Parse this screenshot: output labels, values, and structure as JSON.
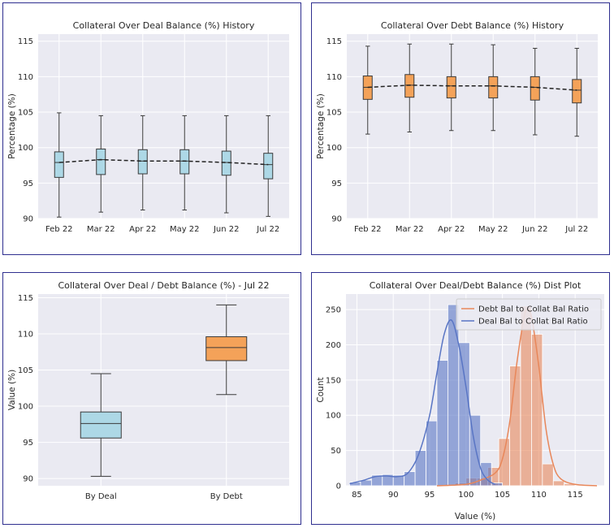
{
  "chart_data": [
    {
      "type": "box",
      "title": "Collateral Over Deal Balance (%) History",
      "xlabel": "",
      "ylabel": "Percentage (%)",
      "ylim": [
        90,
        116
      ],
      "yticks": [
        90,
        95,
        100,
        105,
        110,
        115
      ],
      "categories": [
        "Feb 22",
        "Mar 22",
        "Apr 22",
        "May 22",
        "Jun 22",
        "Jul 22"
      ],
      "box_color": "#add8e6",
      "boxes": [
        {
          "min": 90.2,
          "q1": 95.8,
          "median": 97.9,
          "q3": 99.4,
          "max": 104.9
        },
        {
          "min": 90.9,
          "q1": 96.2,
          "median": 98.3,
          "q3": 99.8,
          "max": 104.5
        },
        {
          "min": 91.2,
          "q1": 96.3,
          "median": 98.1,
          "q3": 99.7,
          "max": 104.5
        },
        {
          "min": 91.2,
          "q1": 96.3,
          "median": 98.1,
          "q3": 99.7,
          "max": 104.5
        },
        {
          "min": 90.8,
          "q1": 96.1,
          "median": 97.9,
          "q3": 99.5,
          "max": 104.5
        },
        {
          "min": 90.3,
          "q1": 95.6,
          "median": 97.6,
          "q3": 99.2,
          "max": 104.5
        }
      ],
      "trend": [
        97.9,
        98.3,
        98.1,
        98.1,
        97.9,
        97.6
      ],
      "grid": true
    },
    {
      "type": "box",
      "title": "Collateral Over Debt Balance (%) History",
      "xlabel": "",
      "ylabel": "Percentage (%)",
      "ylim": [
        90,
        116
      ],
      "yticks": [
        90,
        95,
        100,
        105,
        110,
        115
      ],
      "categories": [
        "Feb 22",
        "Mar 22",
        "Apr 22",
        "May 22",
        "Jun 22",
        "Jul 22"
      ],
      "box_color": "#f4a259",
      "boxes": [
        {
          "min": 101.9,
          "q1": 106.8,
          "median": 108.5,
          "q3": 110.1,
          "max": 114.3
        },
        {
          "min": 102.2,
          "q1": 107.1,
          "median": 108.8,
          "q3": 110.3,
          "max": 114.6
        },
        {
          "min": 102.4,
          "q1": 107.0,
          "median": 108.7,
          "q3": 110.0,
          "max": 114.6
        },
        {
          "min": 102.4,
          "q1": 107.0,
          "median": 108.7,
          "q3": 110.0,
          "max": 114.5
        },
        {
          "min": 101.8,
          "q1": 106.7,
          "median": 108.5,
          "q3": 110.0,
          "max": 114.0
        },
        {
          "min": 101.6,
          "q1": 106.3,
          "median": 108.1,
          "q3": 109.6,
          "max": 114.0
        }
      ],
      "trend": [
        108.5,
        108.8,
        108.7,
        108.7,
        108.5,
        108.1
      ],
      "grid": true
    },
    {
      "type": "box",
      "title": "Collateral Over Deal / Debt Balance (%) - Jul 22",
      "xlabel": "",
      "ylabel": "Value (%)",
      "ylim": [
        89,
        115.5
      ],
      "yticks": [
        90,
        95,
        100,
        105,
        110,
        115
      ],
      "categories": [
        "By Deal",
        "By Debt"
      ],
      "boxes": [
        {
          "min": 90.3,
          "q1": 95.6,
          "median": 97.6,
          "q3": 99.2,
          "max": 104.5,
          "color": "#add8e6"
        },
        {
          "min": 101.6,
          "q1": 106.3,
          "median": 108.1,
          "q3": 109.6,
          "max": 114.0,
          "color": "#f4a259"
        }
      ],
      "grid": true
    },
    {
      "type": "histogram",
      "title": "Collateral Over Deal/Debt Balance (%) Dist Plot",
      "xlabel": "Value (%)",
      "ylabel": "Count",
      "xlim": [
        83.5,
        119
      ],
      "ylim": [
        0,
        272
      ],
      "xticks": [
        85,
        90,
        95,
        100,
        105,
        110,
        115
      ],
      "yticks": [
        0,
        50,
        100,
        150,
        200,
        250
      ],
      "legend_position": "top-right",
      "bin_width": 1.5,
      "series": [
        {
          "name": "Debt Bal to Collat Bal Ratio",
          "color": "#e8875a",
          "bin_starts": [
            97.0,
            98.5,
            100.0,
            101.5,
            103.0,
            104.5,
            106.0,
            107.5,
            109.0,
            110.5,
            112.0,
            113.5,
            115.0,
            116.5
          ],
          "counts": [
            2,
            4,
            11,
            11,
            26,
            67,
            170,
            255,
            215,
            31,
            7,
            3,
            1,
            1
          ],
          "kde_x": [
            96,
            100,
            102,
            104,
            105,
            106,
            107,
            108,
            108.5,
            109,
            110,
            111,
            112,
            113,
            115,
            118
          ],
          "kde_y": [
            0,
            2,
            8,
            18,
            38,
            90,
            175,
            240,
            250,
            240,
            170,
            80,
            30,
            10,
            2,
            0
          ]
        },
        {
          "name": "Deal Bal to Collat Bal Ratio",
          "color": "#5975c4",
          "bin_starts": [
            84.0,
            85.5,
            87.0,
            88.5,
            90.0,
            91.5,
            93.0,
            94.5,
            96.0,
            97.5,
            99.0,
            100.5,
            102.0,
            103.5
          ],
          "counts": [
            5,
            8,
            15,
            16,
            15,
            20,
            50,
            92,
            178,
            257,
            203,
            100,
            33,
            4
          ],
          "kde_x": [
            84,
            86,
            87.5,
            89,
            90.5,
            92,
            93.5,
            95,
            96,
            97,
            98,
            99,
            100,
            101,
            102,
            103,
            104
          ],
          "kde_y": [
            3,
            8,
            13,
            14,
            13,
            18,
            45,
            100,
            160,
            215,
            235,
            200,
            140,
            70,
            25,
            8,
            2
          ]
        }
      ],
      "grid": true
    }
  ]
}
